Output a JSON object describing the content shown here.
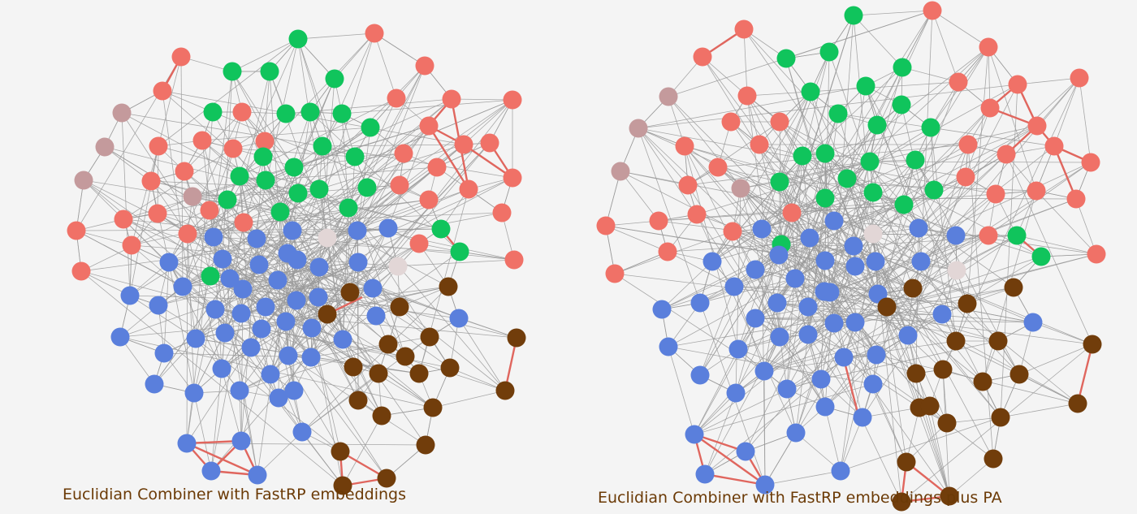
{
  "colors": {
    "background": "#f4f4f4",
    "edge": "#9a9a9a",
    "highlight_edge": "#e0665e",
    "caption": "#6b3a06",
    "community": {
      "red": "#f07167",
      "green": "#10c45c",
      "blue": "#5a7fdc",
      "brown": "#713d0b",
      "mauve": "#c49a9c",
      "pale": "#e2d6d6"
    }
  },
  "panels": [
    {
      "id": "left",
      "caption": "Euclidian Combiner with FastRP embeddings",
      "node_count": 151
    },
    {
      "id": "right",
      "caption": "Euclidian Combiner with FastRP embeddings plus PA",
      "node_count": 151
    }
  ]
}
